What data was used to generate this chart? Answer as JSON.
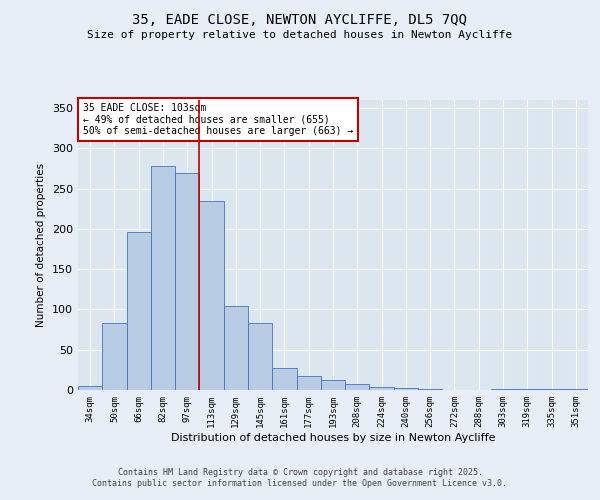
{
  "title_line1": "35, EADE CLOSE, NEWTON AYCLIFFE, DL5 7QQ",
  "title_line2": "Size of property relative to detached houses in Newton Aycliffe",
  "xlabel": "Distribution of detached houses by size in Newton Aycliffe",
  "ylabel": "Number of detached properties",
  "bar_labels": [
    "34sqm",
    "50sqm",
    "66sqm",
    "82sqm",
    "97sqm",
    "113sqm",
    "129sqm",
    "145sqm",
    "161sqm",
    "177sqm",
    "193sqm",
    "208sqm",
    "224sqm",
    "240sqm",
    "256sqm",
    "272sqm",
    "288sqm",
    "303sqm",
    "319sqm",
    "335sqm",
    "351sqm"
  ],
  "bar_values": [
    5,
    83,
    196,
    278,
    270,
    235,
    104,
    83,
    27,
    17,
    13,
    8,
    4,
    2,
    1,
    0,
    0,
    1,
    1,
    1,
    1
  ],
  "bar_color": "#b8cce4",
  "bar_edge_color": "#4472c4",
  "vline_x": 4.5,
  "vline_color": "#c00000",
  "annotation_text": "35 EADE CLOSE: 103sqm\n← 49% of detached houses are smaller (655)\n50% of semi-detached houses are larger (663) →",
  "annotation_box_color": "#ffffff",
  "annotation_box_edge": "#c00000",
  "ylim": [
    0,
    360
  ],
  "yticks": [
    0,
    50,
    100,
    150,
    200,
    250,
    300,
    350
  ],
  "bg_color": "#e8eef7",
  "plot_bg_color": "#dce6f1",
  "grid_color": "#ffffff",
  "footer_line1": "Contains HM Land Registry data © Crown copyright and database right 2025.",
  "footer_line2": "Contains public sector information licensed under the Open Government Licence v3.0."
}
